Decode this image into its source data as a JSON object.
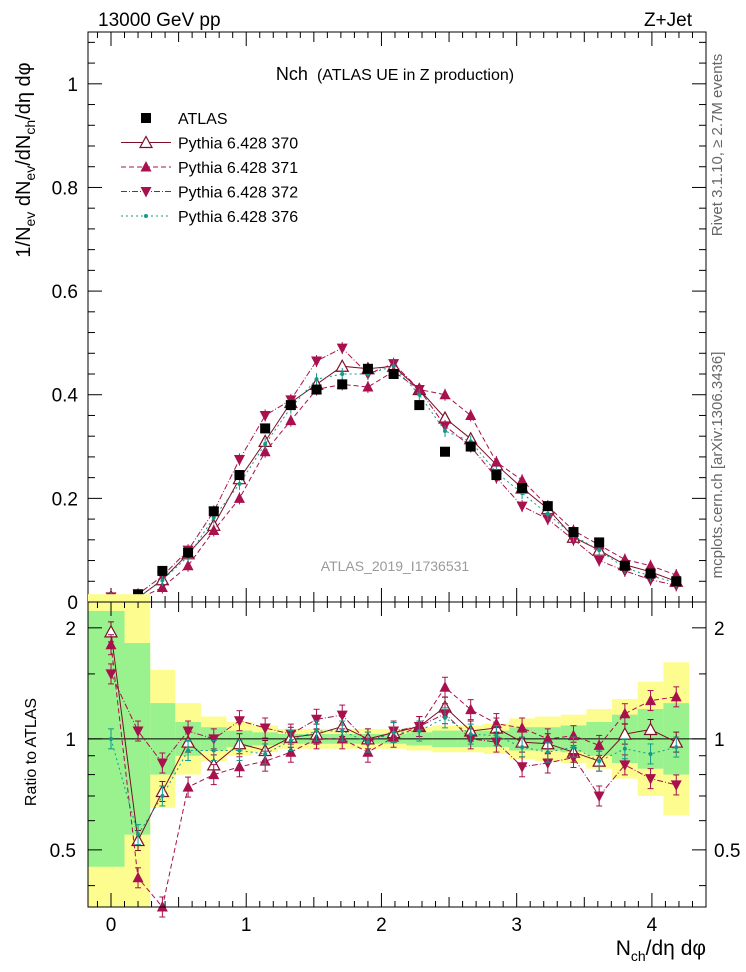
{
  "header": {
    "left": "13000 GeV pp",
    "right": "Z+Jet"
  },
  "side": {
    "upper": "Rivet 3.1.10, ≥ 2.7M events",
    "lower": "mcplots.cern.ch [arXiv:1306.3436]"
  },
  "main_title": {
    "name": "Nch",
    "desc": "(ATLAS UE in Z production)"
  },
  "watermark": "ATLAS_2019_I1736531",
  "axes": {
    "ylabel_main": {
      "a": "1/N",
      "a_sub": "ev",
      "b": " dN",
      "b_sub": "ev",
      "c": "/dN",
      "c_sub": "ch",
      "d": "/dη dφ"
    },
    "ylabel_ratio": "Ratio to ATLAS",
    "xlabel": {
      "a": "N",
      "a_sub": "ch",
      "b": "/dη dφ"
    },
    "main_yticks": [
      "0",
      "0.2",
      "0.4",
      "0.6",
      "0.8",
      "1"
    ],
    "ratio_yticks": [
      "0.5",
      "1",
      "2"
    ],
    "xticks": [
      "0",
      "1",
      "2",
      "3",
      "4"
    ]
  },
  "legend": [
    {
      "label": "ATLAS",
      "marker": "square",
      "color": "#000000"
    },
    {
      "label": "Pythia 6.428 370",
      "marker": "triangle-open",
      "color": "#7b0f26"
    },
    {
      "label": "Pythia 6.428 371",
      "marker": "triangle-up",
      "color": "#a8104e"
    },
    {
      "label": "Pythia 6.428 372",
      "marker": "triangle-down",
      "color": "#a8104e"
    },
    {
      "label": "Pythia 6.428 376",
      "marker": "dot",
      "color": "#159a8a"
    }
  ],
  "chart_data": {
    "type": "line",
    "x": [
      0.0,
      0.2,
      0.38,
      0.57,
      0.76,
      0.95,
      1.14,
      1.33,
      1.52,
      1.71,
      1.9,
      2.09,
      2.28,
      2.47,
      2.66,
      2.85,
      3.04,
      3.23,
      3.42,
      3.61,
      3.8,
      3.99,
      4.18
    ],
    "xlim": [
      -0.17,
      4.4
    ],
    "ylim": [
      0,
      1.1
    ],
    "ratio_ylim": [
      0.35,
      2.35
    ],
    "ratio_log": true,
    "atlas": [
      0.005,
      0.015,
      0.06,
      0.095,
      0.175,
      0.245,
      0.335,
      0.38,
      0.41,
      0.42,
      0.45,
      0.44,
      0.38,
      0.29,
      0.3,
      0.245,
      0.22,
      0.185,
      0.135,
      0.115,
      0.07,
      0.055,
      0.04
    ],
    "series": [
      {
        "name": "Pythia 6.428 370",
        "values": [
          0.01,
          0.008,
          0.043,
          0.093,
          0.148,
          0.238,
          0.31,
          0.385,
          0.42,
          0.455,
          0.45,
          0.455,
          0.41,
          0.355,
          0.315,
          0.265,
          0.22,
          0.18,
          0.125,
          0.1,
          0.072,
          0.058,
          0.04
        ]
      },
      {
        "name": "Pythia 6.428 371",
        "values": [
          0.009,
          0.006,
          0.028,
          0.07,
          0.138,
          0.2,
          0.29,
          0.35,
          0.41,
          0.42,
          0.415,
          0.445,
          0.41,
          0.4,
          0.36,
          0.27,
          0.235,
          0.185,
          0.138,
          0.11,
          0.082,
          0.07,
          0.052
        ]
      },
      {
        "name": "Pythia 6.428 372",
        "values": [
          0.01,
          0.015,
          0.05,
          0.1,
          0.175,
          0.275,
          0.36,
          0.39,
          0.465,
          0.49,
          0.44,
          0.46,
          0.41,
          0.34,
          0.3,
          0.24,
          0.185,
          0.16,
          0.12,
          0.08,
          0.06,
          0.043,
          0.032
        ]
      },
      {
        "name": "Pythia 6.428 376",
        "values": [
          0.008,
          0.008,
          0.042,
          0.088,
          0.163,
          0.228,
          0.305,
          0.375,
          0.43,
          0.44,
          0.44,
          0.455,
          0.4,
          0.33,
          0.31,
          0.25,
          0.21,
          0.17,
          0.128,
          0.1,
          0.066,
          0.05,
          0.038
        ]
      }
    ],
    "ratio_series": [
      {
        "name": "Pythia 6.428 370",
        "values": [
          1.95,
          0.53,
          0.72,
          0.98,
          0.85,
          0.97,
          0.93,
          1.01,
          1.03,
          1.08,
          1.0,
          1.04,
          1.08,
          1.22,
          1.05,
          1.07,
          0.98,
          0.97,
          0.92,
          0.87,
          1.03,
          1.06,
          0.98
        ]
      },
      {
        "name": "Pythia 6.428 371",
        "values": [
          1.8,
          0.42,
          0.35,
          0.74,
          0.8,
          0.84,
          0.87,
          0.92,
          1.0,
          1.0,
          0.92,
          1.01,
          1.08,
          1.38,
          1.2,
          1.1,
          1.07,
          1.0,
          1.02,
          0.96,
          1.17,
          1.27,
          1.3
        ]
      },
      {
        "name": "Pythia 6.428 372",
        "values": [
          1.5,
          1.05,
          0.86,
          1.05,
          1.0,
          1.12,
          1.07,
          1.03,
          1.13,
          1.16,
          0.98,
          1.05,
          1.08,
          1.17,
          1.0,
          0.98,
          0.84,
          0.86,
          0.89,
          0.7,
          0.85,
          0.78,
          0.75
        ]
      },
      {
        "name": "Pythia 6.428 376",
        "values": [
          1.0,
          0.55,
          0.7,
          0.93,
          0.93,
          0.93,
          0.91,
          0.99,
          1.05,
          1.05,
          0.98,
          1.04,
          1.05,
          1.14,
          1.03,
          1.02,
          0.95,
          0.92,
          0.95,
          0.87,
          0.94,
          0.91,
          0.95
        ]
      }
    ],
    "band_inner": [
      0.45,
      0.55,
      0.8,
      0.9,
      0.93,
      0.95,
      0.96,
      0.97,
      0.97,
      0.97,
      0.97,
      0.97,
      0.96,
      0.95,
      0.95,
      0.95,
      0.93,
      0.93,
      0.92,
      0.9,
      0.86,
      0.83,
      0.8
    ],
    "band_outer": [
      0.35,
      0.35,
      0.65,
      0.8,
      0.87,
      0.9,
      0.92,
      0.94,
      0.94,
      0.94,
      0.94,
      0.94,
      0.93,
      0.92,
      0.92,
      0.91,
      0.88,
      0.87,
      0.86,
      0.83,
      0.78,
      0.7,
      0.62
    ]
  }
}
